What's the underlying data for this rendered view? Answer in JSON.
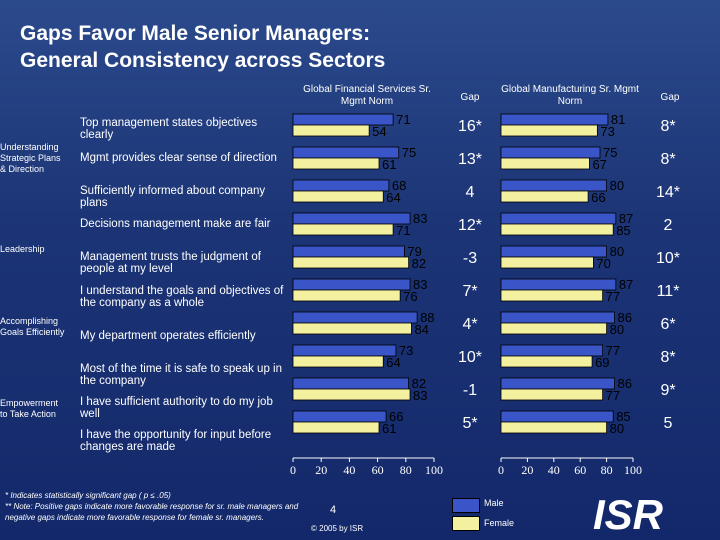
{
  "title_line1": "Gaps Favor Male Senior Managers:",
  "title_line2": "General Consistency across Sectors",
  "headers": {
    "financial": "Global Financial Services Sr. Mgmt Norm",
    "gap1": "Gap",
    "manufacturing": "Global Manufacturing Sr. Mgmt Norm",
    "gap2": "Gap"
  },
  "groups": [
    "Understanding Strategic Plans & Direction",
    "Leadership",
    "Accomplishing Goals Efficiently",
    "Empowerment to Take Action"
  ],
  "items": [
    "Top management states objectives clearly",
    "Mgmt provides clear sense of direction",
    "Sufficiently informed about company plans",
    "Decisions management make are fair",
    "Management trusts the judgment of people at my level",
    "I understand the goals and objectives of the company as a whole",
    "My department operates efficiently",
    "Most of the time it is safe to speak up in the company",
    "I have sufficient authority to do my job well",
    "I have the opportunity for input before changes are made"
  ],
  "legend": {
    "male": "Male",
    "female": "Female"
  },
  "colors": {
    "male": "#3a55c8",
    "female": "#f3f0a0",
    "background": "#1c3576"
  },
  "footnote1": "* Indicates statistically significant gap ( p ≤ .05)",
  "footnote2": "** Note: Positive gaps indicate more favorable response for sr. male managers and negative gaps indicate more favorable response for female sr. managers.",
  "page_number": "4",
  "copyright": "© 2005 by ISR",
  "logo_text": "ISR",
  "chart_data": [
    {
      "type": "bar",
      "orientation": "horizontal",
      "title": "Global Financial Services Sr. Mgmt Norm",
      "xlim": [
        0,
        100
      ],
      "ticks": [
        0,
        20,
        40,
        60,
        80,
        100
      ],
      "series": [
        {
          "name": "Male",
          "values": [
            71,
            75,
            68,
            83,
            79,
            83,
            88,
            73,
            82,
            66
          ]
        },
        {
          "name": "Female",
          "values": [
            54,
            61,
            64,
            71,
            82,
            76,
            84,
            64,
            83,
            61
          ]
        }
      ],
      "gaps": [
        "16*",
        "13*",
        "4",
        "12*",
        "-3",
        "7*",
        "4*",
        "10*",
        "-1",
        "5*"
      ]
    },
    {
      "type": "bar",
      "orientation": "horizontal",
      "title": "Global Manufacturing Sr. Mgmt Norm",
      "xlim": [
        0,
        100
      ],
      "ticks": [
        0,
        20,
        40,
        60,
        80,
        100
      ],
      "series": [
        {
          "name": "Male",
          "values": [
            81,
            75,
            80,
            87,
            80,
            87,
            86,
            77,
            86,
            85
          ]
        },
        {
          "name": "Female",
          "values": [
            73,
            67,
            66,
            85,
            70,
            77,
            80,
            69,
            77,
            80
          ]
        }
      ],
      "gaps": [
        "8*",
        "8*",
        "14*",
        "2",
        "10*",
        "11*",
        "6*",
        "8*",
        "9*",
        "5"
      ]
    }
  ]
}
